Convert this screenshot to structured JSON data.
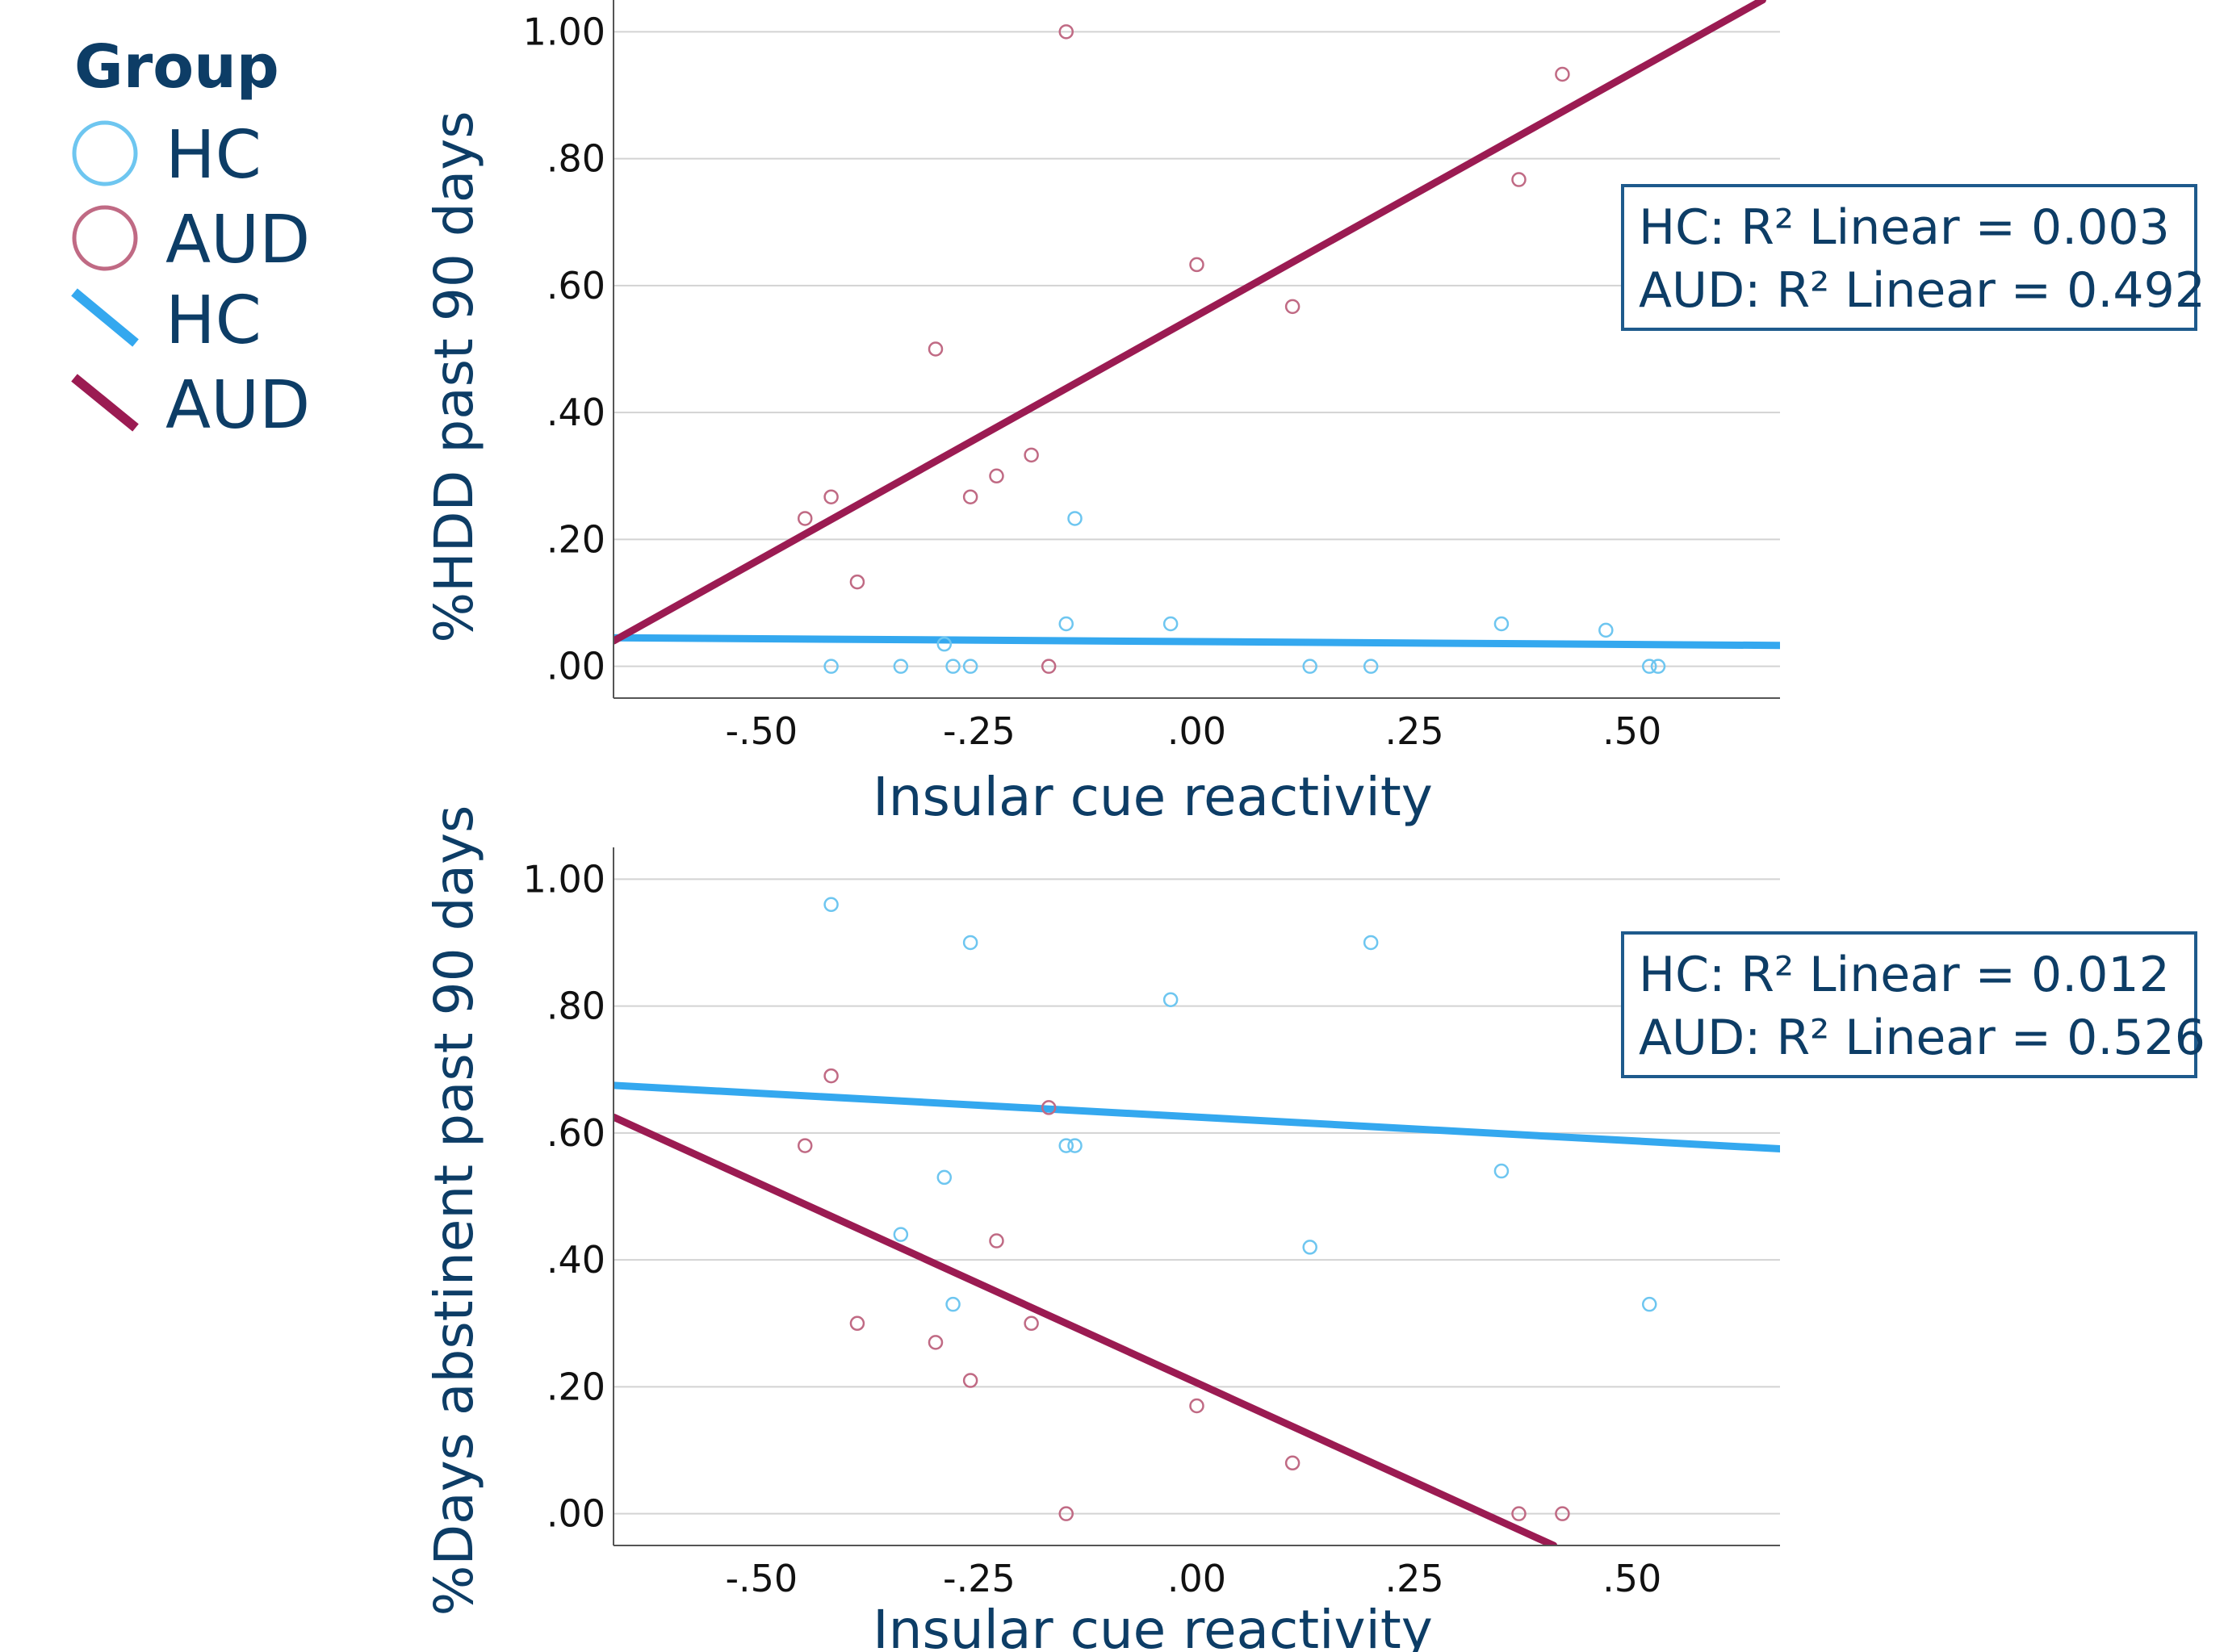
{
  "legend": {
    "title": "Group",
    "items": [
      {
        "label": "HC",
        "kind": "marker",
        "color": "#6ec6f0"
      },
      {
        "label": "AUD",
        "kind": "marker",
        "color": "#c06a84"
      },
      {
        "label": "HC",
        "kind": "line",
        "color": "#34a8ef"
      },
      {
        "label": "AUD",
        "kind": "line",
        "color": "#9b1b52"
      }
    ]
  },
  "chart_data": [
    {
      "type": "scatter",
      "xlabel": "Insular cue reactivity",
      "ylabel": "%HDD past 90 days",
      "xlim": [
        -0.67,
        0.67
      ],
      "ylim": [
        -0.05,
        1.05
      ],
      "xticks": [
        -0.5,
        -0.25,
        0.0,
        0.25,
        0.5
      ],
      "xtick_labels": [
        "-.50",
        "-.25",
        ".00",
        ".25",
        ".50"
      ],
      "yticks": [
        0.0,
        0.2,
        0.4,
        0.6,
        0.8,
        1.0
      ],
      "ytick_labels": [
        ".00",
        ".20",
        ".40",
        ".60",
        ".80",
        "1.00"
      ],
      "grid": true,
      "r2_lines": [
        "HC: R² Linear = 0.003",
        "AUD: R² Linear = 0.492"
      ],
      "series": [
        {
          "name": "HC",
          "color": "#6ec6f0",
          "points": [
            [
              -0.42,
              0.0
            ],
            [
              -0.34,
              0.0
            ],
            [
              -0.29,
              0.035
            ],
            [
              -0.28,
              0.0
            ],
            [
              -0.26,
              0.0
            ],
            [
              -0.15,
              0.067
            ],
            [
              -0.14,
              0.233
            ],
            [
              -0.03,
              0.067
            ],
            [
              0.13,
              0.0
            ],
            [
              0.2,
              0.0
            ],
            [
              0.35,
              0.067
            ],
            [
              0.47,
              0.057
            ],
            [
              0.52,
              0.0
            ],
            [
              0.53,
              0.0
            ]
          ]
        },
        {
          "name": "AUD",
          "color": "#c06a84",
          "points": [
            [
              -0.45,
              0.233
            ],
            [
              -0.42,
              0.267
            ],
            [
              -0.39,
              0.133
            ],
            [
              -0.3,
              0.5
            ],
            [
              -0.26,
              0.267
            ],
            [
              -0.23,
              0.3
            ],
            [
              -0.19,
              0.333
            ],
            [
              -0.17,
              0.0
            ],
            [
              -0.15,
              1.0
            ],
            [
              0.0,
              0.633
            ],
            [
              0.11,
              0.567
            ],
            [
              0.37,
              0.767
            ],
            [
              0.42,
              0.933
            ]
          ]
        }
      ],
      "fit_lines": [
        {
          "name": "HC",
          "color": "#34a8ef",
          "x1": -0.67,
          "y1": 0.045,
          "x2": 0.67,
          "y2": 0.033
        },
        {
          "name": "AUD",
          "color": "#9b1b52",
          "x1": -0.67,
          "y1": 0.04,
          "x2": 0.65,
          "y2": 1.05
        }
      ]
    },
    {
      "type": "scatter",
      "xlabel": "Insular cue reactivity",
      "ylabel": "%Days abstinent past 90 days",
      "xlim": [
        -0.67,
        0.67
      ],
      "ylim": [
        -0.05,
        1.05
      ],
      "xticks": [
        -0.5,
        -0.25,
        0.0,
        0.25,
        0.5
      ],
      "xtick_labels": [
        "-.50",
        "-.25",
        ".00",
        ".25",
        ".50"
      ],
      "yticks": [
        0.0,
        0.2,
        0.4,
        0.6,
        0.8,
        1.0
      ],
      "ytick_labels": [
        ".00",
        ".20",
        ".40",
        ".60",
        ".80",
        "1.00"
      ],
      "grid": true,
      "r2_lines": [
        "HC: R² Linear = 0.012",
        "AUD: R² Linear = 0.526"
      ],
      "series": [
        {
          "name": "HC",
          "color": "#6ec6f0",
          "points": [
            [
              -0.42,
              0.96
            ],
            [
              -0.34,
              0.44
            ],
            [
              -0.29,
              0.53
            ],
            [
              -0.28,
              0.33
            ],
            [
              -0.26,
              0.9
            ],
            [
              -0.15,
              0.58
            ],
            [
              -0.14,
              0.58
            ],
            [
              -0.03,
              0.81
            ],
            [
              0.13,
              0.42
            ],
            [
              0.2,
              0.9
            ],
            [
              0.35,
              0.54
            ],
            [
              0.52,
              0.33
            ]
          ]
        },
        {
          "name": "AUD",
          "color": "#c06a84",
          "points": [
            [
              -0.45,
              0.58
            ],
            [
              -0.42,
              0.69
            ],
            [
              -0.39,
              0.3
            ],
            [
              -0.3,
              0.27
            ],
            [
              -0.26,
              0.21
            ],
            [
              -0.23,
              0.43
            ],
            [
              -0.19,
              0.3
            ],
            [
              -0.17,
              0.64
            ],
            [
              -0.15,
              0.0
            ],
            [
              0.0,
              0.17
            ],
            [
              0.11,
              0.08
            ],
            [
              0.37,
              0.0
            ],
            [
              0.42,
              0.0
            ]
          ]
        }
      ],
      "fit_lines": [
        {
          "name": "HC",
          "color": "#34a8ef",
          "x1": -0.67,
          "y1": 0.675,
          "x2": 0.67,
          "y2": 0.575
        },
        {
          "name": "AUD",
          "color": "#9b1b52",
          "x1": -0.67,
          "y1": 0.625,
          "x2": 0.41,
          "y2": -0.05
        }
      ]
    }
  ]
}
